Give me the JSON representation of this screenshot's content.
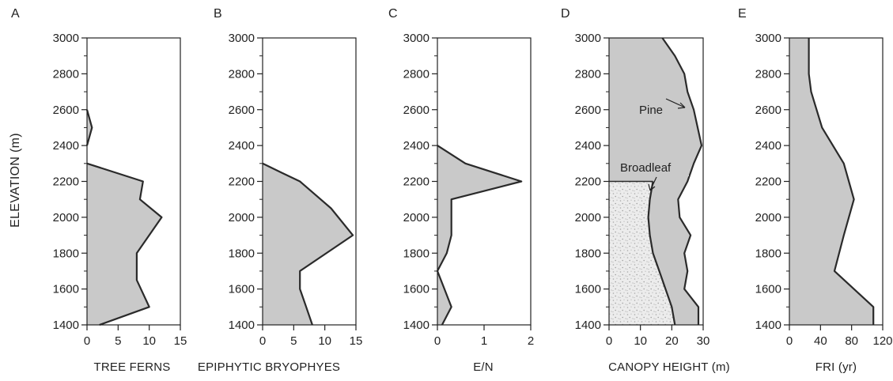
{
  "y_axis_label": "ELEVATION (m)",
  "colors": {
    "fill": "#c9c9c9",
    "stroke": "#2a2a2a",
    "speckle": "#aaaaaa",
    "axis": "#222222"
  },
  "chart_data": [
    {
      "panel": "A",
      "type": "area",
      "xlabel": "TREE FERNS",
      "xlim": [
        0,
        15
      ],
      "xticks": [
        "0",
        "5",
        "10",
        "15"
      ],
      "ylim": [
        1400,
        3000
      ],
      "yticks": [
        "1400",
        "1600",
        "1800",
        "2000",
        "2200",
        "2400",
        "2600",
        "2800",
        "3000"
      ],
      "yminor": true,
      "outline": [
        [
          2,
          1400
        ],
        [
          10,
          1500
        ],
        [
          8,
          1650
        ],
        [
          8,
          1800
        ],
        [
          12,
          2000
        ],
        [
          8.5,
          2100
        ],
        [
          9,
          2200
        ],
        [
          0,
          2300
        ]
      ],
      "extra_outline": [
        [
          0,
          2400
        ],
        [
          0.8,
          2500
        ],
        [
          0,
          2600
        ]
      ]
    },
    {
      "panel": "B",
      "type": "area",
      "xlabel": "EPIPHYTIC BRYOPHYES",
      "xlim": [
        0,
        15
      ],
      "xticks": [
        "0",
        "5",
        "10",
        "15"
      ],
      "ylim": [
        1400,
        3000
      ],
      "yticks": [
        "1400",
        "1600",
        "1800",
        "2000",
        "2200",
        "2400",
        "2600",
        "2800",
        "3000"
      ],
      "yminor": true,
      "outline": [
        [
          8,
          1400
        ],
        [
          7,
          1500
        ],
        [
          6,
          1600
        ],
        [
          6,
          1700
        ],
        [
          14.5,
          1900
        ],
        [
          11,
          2050
        ],
        [
          6,
          2200
        ],
        [
          3,
          2250
        ],
        [
          0,
          2300
        ]
      ]
    },
    {
      "panel": "C",
      "type": "area",
      "xlabel": "E/N",
      "xlim": [
        0,
        2
      ],
      "xticks": [
        "0",
        "1",
        "2"
      ],
      "ylim": [
        1400,
        3000
      ],
      "yticks": [
        "1400",
        "1600",
        "1800",
        "2000",
        "2200",
        "2400",
        "2600",
        "2800",
        "3000"
      ],
      "yminor": true,
      "outline": [
        [
          0.1,
          1400
        ],
        [
          0.3,
          1500
        ],
        [
          0.15,
          1600
        ],
        [
          0,
          1700
        ],
        [
          0.2,
          1800
        ],
        [
          0.3,
          1900
        ],
        [
          0.3,
          2000
        ],
        [
          0.3,
          2100
        ],
        [
          1.8,
          2200
        ],
        [
          0.6,
          2300
        ],
        [
          0,
          2400
        ]
      ]
    },
    {
      "panel": "D",
      "type": "area",
      "xlabel": "CANOPY HEIGHT (m)",
      "xlim": [
        0,
        30
      ],
      "xticks": [
        "0",
        "10",
        "20",
        "30"
      ],
      "ylim": [
        1400,
        3000
      ],
      "yticks": [
        "1400",
        "1600",
        "1800",
        "2000",
        "2200",
        "2400",
        "2600",
        "2800",
        "3000"
      ],
      "yminor": true,
      "series": [
        {
          "name": "Pine",
          "outline": [
            [
              28.5,
              1400
            ],
            [
              28.5,
              1500
            ],
            [
              24,
              1600
            ],
            [
              25,
              1700
            ],
            [
              24,
              1800
            ],
            [
              26,
              1900
            ],
            [
              22.5,
              2000
            ],
            [
              22,
              2100
            ],
            [
              25,
              2200
            ],
            [
              27,
              2300
            ],
            [
              29.5,
              2400
            ],
            [
              27,
              2600
            ],
            [
              25,
              2700
            ],
            [
              24,
              2800
            ],
            [
              21,
              2900
            ],
            [
              17,
              3000
            ]
          ]
        },
        {
          "name": "Broadleaf",
          "outline": [
            [
              21,
              1400
            ],
            [
              20,
              1500
            ],
            [
              18,
              1600
            ],
            [
              16,
              1700
            ],
            [
              14,
              1800
            ],
            [
              13,
              1900
            ],
            [
              12.5,
              2000
            ],
            [
              13,
              2100
            ],
            [
              14,
              2200
            ]
          ]
        }
      ],
      "labels": [
        "Pine",
        "Broadleaf"
      ]
    },
    {
      "panel": "E",
      "type": "area",
      "xlabel": "FRI (yr)",
      "xlim": [
        0,
        120
      ],
      "xticks": [
        "0",
        "40",
        "80",
        "120"
      ],
      "ylim": [
        1400,
        3000
      ],
      "yticks": [
        "1400",
        "1600",
        "1800",
        "2000",
        "2200",
        "2400",
        "2600",
        "2800",
        "3000"
      ],
      "yminor": true,
      "outline": [
        [
          108,
          1400
        ],
        [
          108,
          1500
        ],
        [
          58,
          1700
        ],
        [
          70,
          1900
        ],
        [
          83,
          2100
        ],
        [
          70,
          2300
        ],
        [
          42,
          2500
        ],
        [
          28,
          2700
        ],
        [
          25,
          2800
        ],
        [
          25,
          2900
        ],
        [
          25,
          3000
        ]
      ]
    }
  ]
}
